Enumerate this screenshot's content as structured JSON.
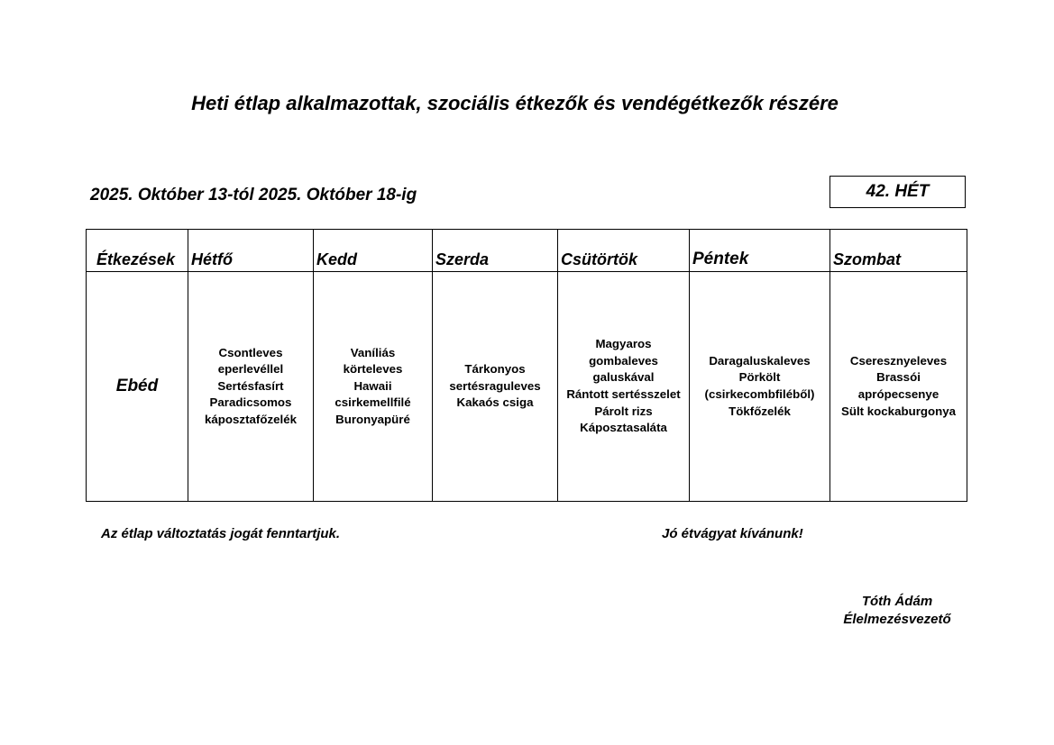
{
  "title": "Heti étlap alkalmazottak, szociális étkezők és vendégétkezők részére",
  "period": "2025. Október 13-tól 2025. Október 18-ig",
  "week": "42. HÉT",
  "headers": [
    "Étkezések",
    "Hétfő",
    "Kedd",
    "Szerda",
    "Csütörtök",
    "Péntek",
    "Szombat"
  ],
  "meal": "Ebéd",
  "days": [
    [
      "Csontleves",
      "eperlevéllel",
      "Sertésfasírt",
      "Paradicsomos",
      "káposztafőzelék"
    ],
    [
      "Vaníliás",
      "körteleves",
      "Hawaii",
      "csirkemellfilé",
      "Buronyapüré"
    ],
    [
      "Tárkonyos",
      "sertésraguleves",
      "Kakaós csiga"
    ],
    [
      "Magyaros",
      "gombaleves",
      "galuskával",
      "Rántott sertésszelet",
      "Párolt rizs",
      "Káposztasaláta"
    ],
    [
      "Daragaluskaleves",
      "Pörkölt",
      "(csirkecombfiléből)",
      "Tökfőzelék"
    ],
    [
      "Cseresznyeleves",
      "Brassói",
      "aprópecsenye",
      "Sült kockaburgonya"
    ]
  ],
  "footer": {
    "note": "Az étlap változtatás jogát fenntartjuk.",
    "wish": "Jó étvágyat kívánunk!",
    "name": "Tóth Ádám",
    "role": "Élelmezésvezető"
  }
}
